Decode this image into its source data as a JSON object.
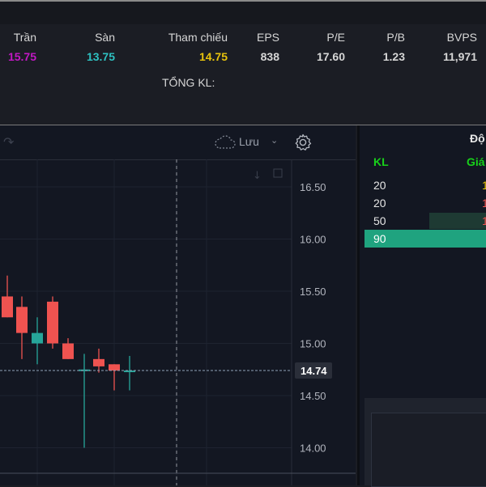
{
  "stats": {
    "tran": {
      "label": "Trần",
      "value": "15.75",
      "color": "#c218c4"
    },
    "san": {
      "label": "Sàn",
      "value": "13.75",
      "color": "#2ec1c1"
    },
    "tham_chieu": {
      "label": "Tham chiếu",
      "value": "14.75",
      "color": "#e8c30c"
    },
    "eps": {
      "label": "EPS",
      "value": "838"
    },
    "pe": {
      "label": "P/E",
      "value": "17.60"
    },
    "pb": {
      "label": "P/B",
      "value": "1.23"
    },
    "bvps": {
      "label": "BVPS",
      "value": "11,971"
    },
    "tong_kl_label": "TỔNG KL:"
  },
  "chart": {
    "save_label": "Lưu",
    "price_ticks": [
      "16.50",
      "16.00",
      "15.50",
      "15.00",
      "14.50",
      "14.00"
    ],
    "current_price": "14.74",
    "colors": {
      "up": "#26a69a",
      "down": "#ef5350"
    },
    "candles": [
      {
        "open": 15.45,
        "high": 15.65,
        "low": 15.25,
        "close": 15.25,
        "dir": "down"
      },
      {
        "open": 15.35,
        "high": 15.45,
        "low": 14.85,
        "close": 15.1,
        "dir": "down"
      },
      {
        "open": 15.0,
        "high": 15.25,
        "low": 14.8,
        "close": 15.1,
        "dir": "up"
      },
      {
        "open": 15.4,
        "high": 15.45,
        "low": 14.95,
        "close": 15.0,
        "dir": "down"
      },
      {
        "open": 15.0,
        "high": 15.05,
        "low": 14.85,
        "close": 14.85,
        "dir": "down"
      },
      {
        "open": 14.75,
        "high": 14.9,
        "low": 14.0,
        "close": 14.75,
        "dir": "up"
      },
      {
        "open": 14.85,
        "high": 14.95,
        "low": 14.72,
        "close": 14.78,
        "dir": "down"
      },
      {
        "open": 14.8,
        "high": 14.8,
        "low": 14.55,
        "close": 14.74,
        "dir": "down"
      },
      {
        "open": 14.74,
        "high": 14.88,
        "low": 14.55,
        "close": 14.74,
        "dir": "up"
      }
    ]
  },
  "orderbook": {
    "title": "Độ",
    "col_kl": "KL",
    "col_gia": "Giá",
    "rows": [
      {
        "kl": "20",
        "price_fragment": "1",
        "color": "#e8c30c"
      },
      {
        "kl": "20",
        "price_fragment": "1",
        "color": "#ef5350"
      },
      {
        "kl": "50",
        "price_fragment": "1",
        "color": "#ef5350"
      },
      {
        "kl": "90",
        "price_fragment": "",
        "color": "#e6e6e6"
      }
    ],
    "kl_color": "#18d11a"
  }
}
